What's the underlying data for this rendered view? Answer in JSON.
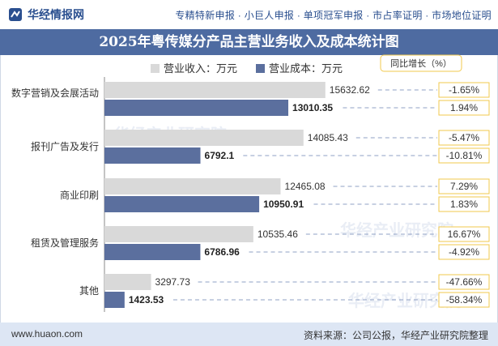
{
  "header": {
    "logo_text": "华经情报网",
    "nav_text": "专精特新申报 · 小巨人申报 · 单项冠军申报 · 市占率证明 · 市场地位证明"
  },
  "footer": {
    "url": "www.huaon.com",
    "source": "资料来源：公司公报，华经产业研究院整理"
  },
  "watermarks": [
    "华经产业研究院",
    "www.huaon.com"
  ],
  "colors": {
    "revenue": "#d9d9d9",
    "cost": "#5b6f9e",
    "title_bg": "#4e6ba1",
    "growth_box_border": "#f2c94c"
  },
  "chart_data": {
    "type": "bar",
    "orientation": "horizontal",
    "title": "2025年粤传媒分产品主营业务收入及成本统计图",
    "categories": [
      "数字营销及会展活动",
      "报刊广告及发行",
      "商业印刷",
      "租赁及管理服务",
      "其他"
    ],
    "series": [
      {
        "name": "营业收入：万元",
        "values": [
          15632.62,
          14085.43,
          12465.08,
          10535.46,
          3297.73
        ]
      },
      {
        "name": "营业成本：万元",
        "values": [
          13010.35,
          6792.1,
          10950.91,
          6786.96,
          1423.53
        ]
      }
    ],
    "value_labels": {
      "revenue": [
        "15632.62",
        "14085.43",
        "12465.08",
        "10535.46",
        "3297.73"
      ],
      "cost": [
        "13010.35",
        "6792.1",
        "10950.91",
        "6786.96",
        "1423.53"
      ]
    },
    "growth_header": "同比增长（%）",
    "growth": {
      "revenue": [
        "-1.65%",
        "-5.47%",
        "7.29%",
        "16.67%",
        "-47.66%"
      ],
      "cost": [
        "1.94%",
        "-10.81%",
        "1.83%",
        "-4.92%",
        "-58.34%"
      ]
    },
    "xlim": [
      0,
      18000
    ],
    "legend_position": "top",
    "grid": false
  }
}
